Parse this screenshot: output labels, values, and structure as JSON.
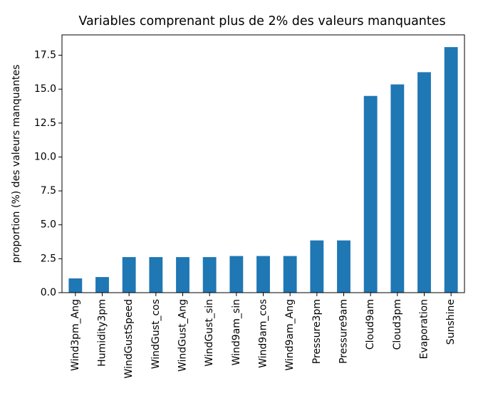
{
  "colors": {
    "bar": "#1f77b4",
    "axis": "#000000",
    "background": "#ffffff"
  },
  "chart_data": {
    "type": "bar",
    "title": "Variables comprenant plus de 2% des valeurs manquantes",
    "xlabel": "",
    "ylabel": "proportion (%) des valeurs manquantes",
    "categories": [
      "Wind3pm_Ang",
      "Humidity3pm",
      "WindGustSpeed",
      "WindGust_cos",
      "WindGust_Ang",
      "WindGust_sin",
      "Wind9am_sin",
      "Wind9am_cos",
      "Wind9am_Ang",
      "Pressure3pm",
      "Pressure9am",
      "Cloud9am",
      "Cloud3pm",
      "Evaporation",
      "Sunshine"
    ],
    "values": [
      1.05,
      1.15,
      2.62,
      2.62,
      2.62,
      2.62,
      2.7,
      2.7,
      2.7,
      3.85,
      3.85,
      14.5,
      15.35,
      16.25,
      18.1
    ],
    "yticks": [
      0.0,
      2.5,
      5.0,
      7.5,
      10.0,
      12.5,
      15.0,
      17.5
    ],
    "ytick_labels": [
      "0.0",
      "2.5",
      "5.0",
      "7.5",
      "10.0",
      "12.5",
      "15.0",
      "17.5"
    ],
    "ylim": [
      0,
      19.0
    ],
    "grid": false,
    "legend": false
  }
}
